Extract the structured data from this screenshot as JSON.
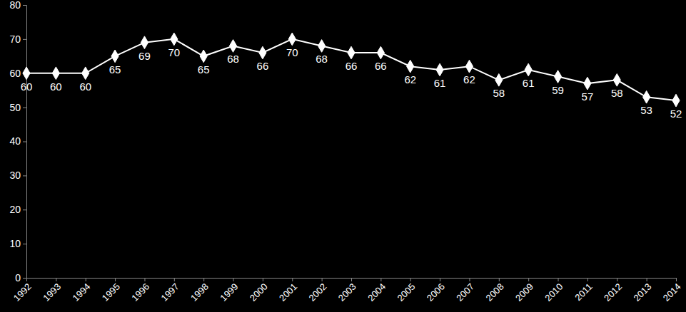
{
  "chart_data": {
    "type": "line",
    "categories": [
      "1992",
      "1993",
      "1994",
      "1995",
      "1996",
      "1997",
      "1998",
      "1999",
      "2000",
      "2001",
      "2002",
      "2003",
      "2004",
      "2005",
      "2006",
      "2007",
      "2008",
      "2009",
      "2010",
      "2011",
      "2012",
      "2013",
      "2014"
    ],
    "values": [
      60,
      60,
      60,
      65,
      69,
      70,
      65,
      68,
      66,
      70,
      68,
      66,
      66,
      62,
      61,
      62,
      58,
      61,
      59,
      57,
      58,
      53,
      52
    ],
    "color": "#ffffff",
    "marker": "diamond",
    "data_labels": true,
    "grid": false,
    "ylim": [
      0,
      80
    ],
    "yticks": [
      0,
      10,
      20,
      30,
      40,
      50,
      60,
      70,
      80
    ]
  }
}
